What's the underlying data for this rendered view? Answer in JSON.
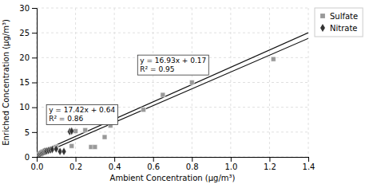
{
  "chart_data": {
    "type": "scatter",
    "xlabel": "Ambient Concentration (μg/m³)",
    "ylabel": "Enriched Concentration (μg/m³)",
    "xlim": [
      0,
      1.4
    ],
    "ylim": [
      0,
      30
    ],
    "xticks": [
      {
        "value": 0,
        "label": "0.0"
      },
      0.2,
      0.4,
      0.6,
      0.8,
      {
        "value": 1.0,
        "label": "1.0"
      },
      1.2,
      1.4
    ],
    "yticks": [
      0,
      5,
      10,
      15,
      20,
      25,
      30
    ],
    "grid": true,
    "legend": "right",
    "series": [
      {
        "name": "Sulfate",
        "type": "scatter",
        "marker": "square",
        "color": "#999999",
        "x": [
          0.02,
          0.05,
          0.1,
          0.18,
          0.2,
          0.25,
          0.28,
          0.3,
          0.35,
          0.38,
          0.55,
          0.65,
          0.8,
          1.22
        ],
        "values": [
          0.5,
          1.0,
          2.0,
          2.2,
          5.2,
          5.4,
          2.0,
          2.0,
          4.0,
          6.3,
          9.5,
          12.5,
          15.0,
          19.7
        ]
      },
      {
        "name": "Nitrate",
        "type": "scatter",
        "marker": "diamond",
        "color": "#333333",
        "x": [
          0.005,
          0.01,
          0.015,
          0.02,
          0.025,
          0.03,
          0.035,
          0.04,
          0.045,
          0.05,
          0.06,
          0.07,
          0.08,
          0.1,
          0.12,
          0.14,
          0.17,
          0.18
        ],
        "values": [
          0.3,
          0.5,
          0.6,
          0.7,
          0.8,
          0.9,
          1.0,
          1.1,
          1.1,
          1.2,
          1.3,
          1.4,
          1.5,
          1.6,
          1.1,
          1.1,
          5.1,
          5.2
        ]
      },
      {
        "type": "line",
        "color": "#111111",
        "x": [
          0,
          1.4
        ],
        "values": [
          0.64,
          25.028
        ]
      },
      {
        "type": "line",
        "color": "#111111",
        "x": [
          0,
          1.4
        ],
        "values": [
          0.17,
          23.872
        ]
      }
    ],
    "annotations": [
      {
        "text": [
          "y = 17.42x + 0.64",
          "R² = 0.86"
        ],
        "x": 0.05,
        "y": 6.5
      },
      {
        "text": [
          "y = 16.93x + 0.17",
          "R² = 0.95"
        ],
        "x": 0.52,
        "y": 16.5
      }
    ]
  }
}
